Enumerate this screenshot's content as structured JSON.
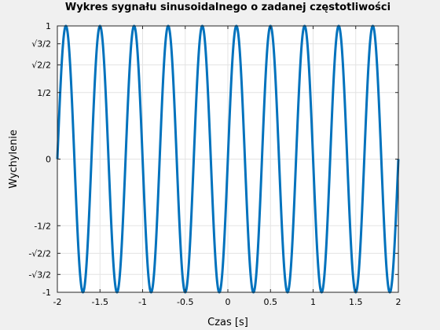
{
  "chart_data": {
    "type": "line",
    "title": "Wykres sygnału sinusoidalnego o zadanej częstotliwości",
    "xlabel": "Czas [s]",
    "ylabel": "Wychylenie",
    "xlim": [
      -2,
      2
    ],
    "ylim": [
      -1,
      1
    ],
    "grid": true,
    "legend": false,
    "function": {
      "form": "y = sin(2*pi*f*t)",
      "frequency_hz": 2.5,
      "amplitude": 1,
      "t_start": -2,
      "t_end": 2
    },
    "xticks": [
      {
        "value": -2,
        "label": "-2"
      },
      {
        "value": -1.5,
        "label": "-1.5"
      },
      {
        "value": -1,
        "label": "-1"
      },
      {
        "value": -0.5,
        "label": "-0.5"
      },
      {
        "value": 0,
        "label": "0"
      },
      {
        "value": 0.5,
        "label": "0.5"
      },
      {
        "value": 1,
        "label": "1"
      },
      {
        "value": 1.5,
        "label": "1.5"
      },
      {
        "value": 2,
        "label": "2"
      }
    ],
    "yticks": [
      {
        "value": -1,
        "label": "-1"
      },
      {
        "value": -0.8660254,
        "label": "-√3/2"
      },
      {
        "value": -0.7071068,
        "label": "-√2/2"
      },
      {
        "value": -0.5,
        "label": "-1/2"
      },
      {
        "value": 0,
        "label": "0"
      },
      {
        "value": 0.5,
        "label": "1/2"
      },
      {
        "value": 0.7071068,
        "label": "√2/2"
      },
      {
        "value": 0.8660254,
        "label": "√3/2"
      },
      {
        "value": 1,
        "label": "1"
      }
    ],
    "line_color": "#0072bd",
    "grid_color": "#e3e3e3",
    "background_color": "#f0f0f0",
    "plot_background_color": "#ffffff"
  }
}
